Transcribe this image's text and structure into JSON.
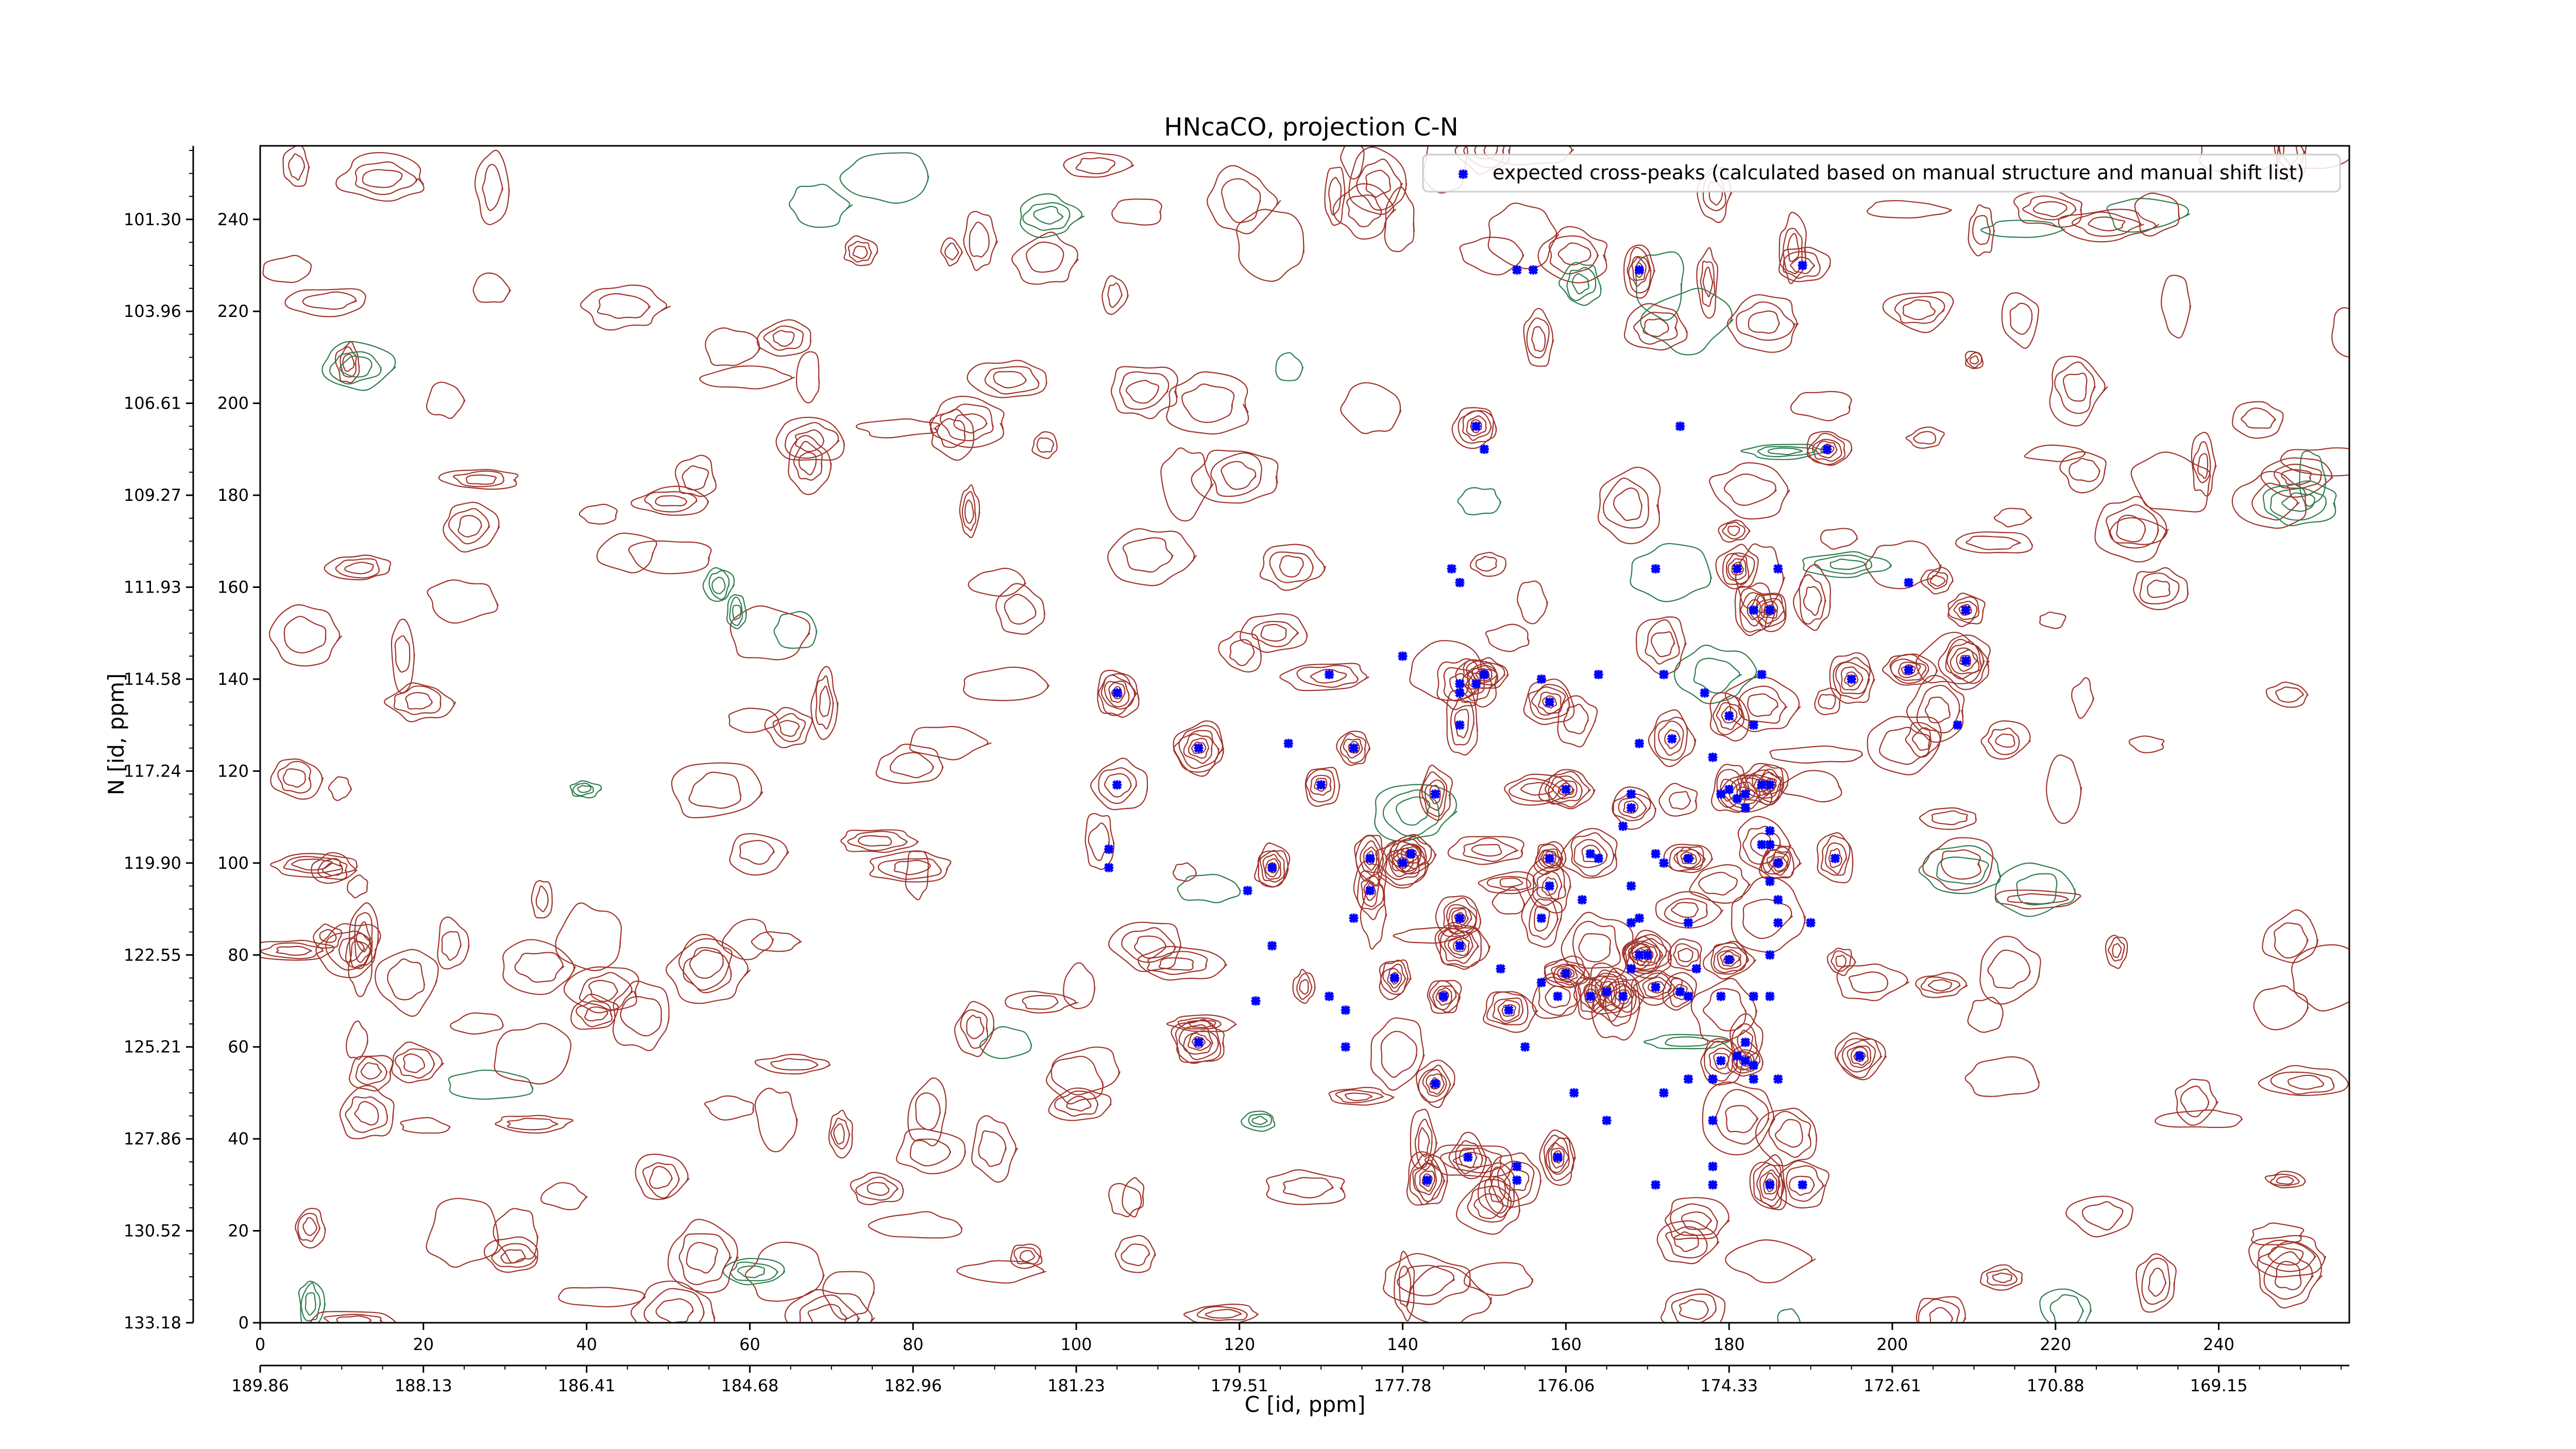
{
  "chart_data": {
    "type": "contour",
    "title": "HNcaCO, projection C-N",
    "xlabel": "C [id, ppm]",
    "ylabel": "N [id, ppm]",
    "xlim": [
      0,
      256
    ],
    "ylim": [
      0,
      256
    ],
    "x_index_ticks": [
      0,
      20,
      40,
      60,
      80,
      100,
      120,
      140,
      160,
      180,
      200,
      220,
      240
    ],
    "x_ppm_ticks": [
      "189.86",
      "188.13",
      "186.41",
      "184.68",
      "182.96",
      "181.23",
      "179.51",
      "177.78",
      "176.06",
      "174.33",
      "172.61",
      "170.88",
      "169.15"
    ],
    "y_index_ticks": [
      0,
      20,
      40,
      60,
      80,
      100,
      120,
      140,
      160,
      180,
      200,
      220,
      240
    ],
    "y_ppm_ticks": [
      "133.18",
      "130.52",
      "127.86",
      "125.21",
      "122.55",
      "119.90",
      "117.24",
      "114.58",
      "111.93",
      "109.27",
      "106.61",
      "103.96",
      "101.30"
    ],
    "legend": {
      "label": "expected cross-peaks (calculated based on manual structure and manual shift list)",
      "position": "top-right",
      "marker": "x"
    },
    "colors": {
      "positive_contour": "#a0342b",
      "negative_contour": "#2e7d4f",
      "peak_marker": "#0000ff"
    },
    "peaks": [
      {
        "x": 154,
        "y": 229
      },
      {
        "x": 156,
        "y": 229
      },
      {
        "x": 169,
        "y": 229
      },
      {
        "x": 189,
        "y": 230
      },
      {
        "x": 149,
        "y": 195
      },
      {
        "x": 150,
        "y": 190
      },
      {
        "x": 174,
        "y": 195
      },
      {
        "x": 192,
        "y": 190
      },
      {
        "x": 146,
        "y": 164
      },
      {
        "x": 147,
        "y": 161
      },
      {
        "x": 171,
        "y": 164
      },
      {
        "x": 181,
        "y": 164
      },
      {
        "x": 186,
        "y": 164
      },
      {
        "x": 202,
        "y": 161
      },
      {
        "x": 183,
        "y": 155
      },
      {
        "x": 185,
        "y": 155
      },
      {
        "x": 209,
        "y": 155
      },
      {
        "x": 140,
        "y": 145
      },
      {
        "x": 131,
        "y": 141
      },
      {
        "x": 147,
        "y": 139
      },
      {
        "x": 149,
        "y": 139
      },
      {
        "x": 150,
        "y": 141
      },
      {
        "x": 157,
        "y": 140
      },
      {
        "x": 164,
        "y": 141
      },
      {
        "x": 172,
        "y": 141
      },
      {
        "x": 177,
        "y": 137
      },
      {
        "x": 184,
        "y": 141
      },
      {
        "x": 195,
        "y": 140
      },
      {
        "x": 202,
        "y": 142
      },
      {
        "x": 209,
        "y": 144
      },
      {
        "x": 105,
        "y": 137
      },
      {
        "x": 147,
        "y": 137
      },
      {
        "x": 147,
        "y": 130
      },
      {
        "x": 158,
        "y": 135
      },
      {
        "x": 180,
        "y": 132
      },
      {
        "x": 183,
        "y": 130
      },
      {
        "x": 115,
        "y": 125
      },
      {
        "x": 126,
        "y": 126
      },
      {
        "x": 134,
        "y": 125
      },
      {
        "x": 169,
        "y": 126
      },
      {
        "x": 173,
        "y": 127
      },
      {
        "x": 178,
        "y": 123
      },
      {
        "x": 208,
        "y": 130
      },
      {
        "x": 105,
        "y": 117
      },
      {
        "x": 130,
        "y": 117
      },
      {
        "x": 144,
        "y": 115
      },
      {
        "x": 160,
        "y": 116
      },
      {
        "x": 168,
        "y": 115
      },
      {
        "x": 179,
        "y": 115
      },
      {
        "x": 182,
        "y": 115
      },
      {
        "x": 184,
        "y": 117
      },
      {
        "x": 185,
        "y": 117
      },
      {
        "x": 180,
        "y": 116
      },
      {
        "x": 181,
        "y": 114
      },
      {
        "x": 167,
        "y": 108
      },
      {
        "x": 168,
        "y": 112
      },
      {
        "x": 182,
        "y": 112
      },
      {
        "x": 185,
        "y": 107
      },
      {
        "x": 104,
        "y": 103
      },
      {
        "x": 104,
        "y": 99
      },
      {
        "x": 124,
        "y": 99
      },
      {
        "x": 121,
        "y": 94
      },
      {
        "x": 136,
        "y": 101
      },
      {
        "x": 141,
        "y": 102
      },
      {
        "x": 140,
        "y": 100
      },
      {
        "x": 158,
        "y": 101
      },
      {
        "x": 163,
        "y": 102
      },
      {
        "x": 164,
        "y": 101
      },
      {
        "x": 171,
        "y": 102
      },
      {
        "x": 172,
        "y": 100
      },
      {
        "x": 175,
        "y": 101
      },
      {
        "x": 184,
        "y": 104
      },
      {
        "x": 185,
        "y": 104
      },
      {
        "x": 186,
        "y": 100
      },
      {
        "x": 193,
        "y": 101
      },
      {
        "x": 136,
        "y": 94
      },
      {
        "x": 158,
        "y": 95
      },
      {
        "x": 162,
        "y": 92
      },
      {
        "x": 168,
        "y": 95
      },
      {
        "x": 185,
        "y": 96
      },
      {
        "x": 186,
        "y": 92
      },
      {
        "x": 134,
        "y": 88
      },
      {
        "x": 147,
        "y": 88
      },
      {
        "x": 157,
        "y": 88
      },
      {
        "x": 168,
        "y": 87
      },
      {
        "x": 169,
        "y": 88
      },
      {
        "x": 175,
        "y": 87
      },
      {
        "x": 186,
        "y": 87
      },
      {
        "x": 190,
        "y": 87
      },
      {
        "x": 124,
        "y": 82
      },
      {
        "x": 147,
        "y": 82
      },
      {
        "x": 152,
        "y": 77
      },
      {
        "x": 169,
        "y": 80
      },
      {
        "x": 170,
        "y": 80
      },
      {
        "x": 180,
        "y": 79
      },
      {
        "x": 185,
        "y": 80
      },
      {
        "x": 139,
        "y": 75
      },
      {
        "x": 160,
        "y": 76
      },
      {
        "x": 168,
        "y": 77
      },
      {
        "x": 176,
        "y": 77
      },
      {
        "x": 122,
        "y": 70
      },
      {
        "x": 131,
        "y": 71
      },
      {
        "x": 145,
        "y": 71
      },
      {
        "x": 157,
        "y": 74
      },
      {
        "x": 159,
        "y": 71
      },
      {
        "x": 163,
        "y": 71
      },
      {
        "x": 165,
        "y": 72
      },
      {
        "x": 167,
        "y": 71
      },
      {
        "x": 171,
        "y": 73
      },
      {
        "x": 174,
        "y": 72
      },
      {
        "x": 175,
        "y": 71
      },
      {
        "x": 179,
        "y": 71
      },
      {
        "x": 183,
        "y": 71
      },
      {
        "x": 185,
        "y": 71
      },
      {
        "x": 133,
        "y": 68
      },
      {
        "x": 153,
        "y": 68
      },
      {
        "x": 115,
        "y": 61
      },
      {
        "x": 133,
        "y": 60
      },
      {
        "x": 155,
        "y": 60
      },
      {
        "x": 179,
        "y": 57
      },
      {
        "x": 181,
        "y": 58
      },
      {
        "x": 182,
        "y": 57
      },
      {
        "x": 183,
        "y": 56
      },
      {
        "x": 182,
        "y": 61
      },
      {
        "x": 196,
        "y": 58
      },
      {
        "x": 144,
        "y": 52
      },
      {
        "x": 161,
        "y": 50
      },
      {
        "x": 172,
        "y": 50
      },
      {
        "x": 175,
        "y": 53
      },
      {
        "x": 178,
        "y": 53
      },
      {
        "x": 183,
        "y": 53
      },
      {
        "x": 186,
        "y": 53
      },
      {
        "x": 165,
        "y": 44
      },
      {
        "x": 178,
        "y": 44
      },
      {
        "x": 143,
        "y": 31
      },
      {
        "x": 148,
        "y": 36
      },
      {
        "x": 154,
        "y": 34
      },
      {
        "x": 154,
        "y": 31
      },
      {
        "x": 159,
        "y": 36
      },
      {
        "x": 171,
        "y": 30
      },
      {
        "x": 178,
        "y": 34
      },
      {
        "x": 178,
        "y": 30
      },
      {
        "x": 185,
        "y": 30
      },
      {
        "x": 189,
        "y": 30
      }
    ]
  }
}
